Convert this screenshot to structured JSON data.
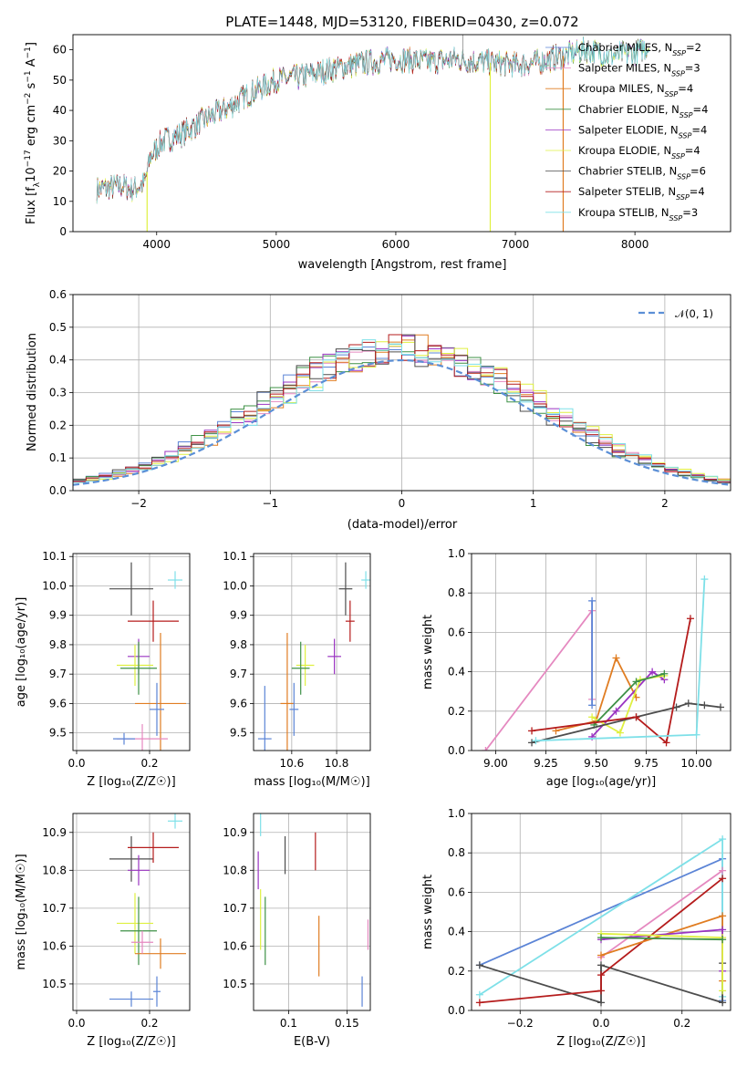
{
  "colors": {
    "chabrier_miles": "#5b84d6",
    "salpeter_miles": "#e589c0",
    "kroupa_miles": "#e07d22",
    "chabrier_elodie": "#3e9146",
    "salpeter_elodie": "#9a34c2",
    "kroupa_elodie": "#dff040",
    "chabrier_stelib": "#4d4d4d",
    "salpeter_stelib": "#b51c1c",
    "kroupa_stelib": "#7ee0e8",
    "grid": "#b0b0b0"
  },
  "chart_data": [
    {
      "id": "spectrum",
      "type": "line",
      "title": "PLATE=1448, MJD=53120, FIBERID=0430, z=0.072",
      "xlabel": "wavelength [Angstrom, rest frame]",
      "ylabel_main": "Flux [f",
      "ylabel_sub1": "λ",
      "ylabel_mid": "10",
      "ylabel_sup1": "−17",
      "ylabel_rest": " erg cm",
      "ylabel_sup2": "−2",
      "ylabel_s": " s",
      "ylabel_sup3": "−1",
      "ylabel_a": " A",
      "ylabel_sup4": "−1",
      "ylabel_end": "]",
      "xlim": [
        3300,
        8800
      ],
      "ylim": [
        0,
        65
      ],
      "xticks": [
        4000,
        5000,
        6000,
        7000,
        8000
      ],
      "yticks": [
        0,
        10,
        20,
        30,
        40,
        50,
        60
      ],
      "grid": false,
      "legend_position": "right",
      "legend": [
        {
          "label": "Chabrier MILES, N",
          "sub": "SSP",
          "val": "=2",
          "color_key": "chabrier_miles"
        },
        {
          "label": "Salpeter MILES, N",
          "sub": "SSP",
          "val": "=3",
          "color_key": "salpeter_miles"
        },
        {
          "label": "Kroupa MILES, N",
          "sub": "SSP",
          "val": "=4",
          "color_key": "kroupa_miles"
        },
        {
          "label": "Chabrier ELODIE, N",
          "sub": "SSP",
          "val": "=4",
          "color_key": "chabrier_elodie"
        },
        {
          "label": "Salpeter ELODIE, N",
          "sub": "SSP",
          "val": "=4",
          "color_key": "salpeter_elodie"
        },
        {
          "label": "Kroupa ELODIE, N",
          "sub": "SSP",
          "val": "=4",
          "color_key": "kroupa_elodie"
        },
        {
          "label": "Chabrier STELIB, N",
          "sub": "SSP",
          "val": "=6",
          "color_key": "chabrier_stelib"
        },
        {
          "label": "Salpeter STELIB, N",
          "sub": "SSP",
          "val": "=4",
          "color_key": "salpeter_stelib"
        },
        {
          "label": "Kroupa STELIB, N",
          "sub": "SSP",
          "val": "=3",
          "color_key": "kroupa_stelib"
        }
      ],
      "continuum": [
        [
          3500,
          14
        ],
        [
          3700,
          15
        ],
        [
          3800,
          14
        ],
        [
          3900,
          16
        ],
        [
          3950,
          25
        ],
        [
          4050,
          30
        ],
        [
          4200,
          32
        ],
        [
          4400,
          37
        ],
        [
          4600,
          41
        ],
        [
          4800,
          46
        ],
        [
          5000,
          50
        ],
        [
          5200,
          51
        ],
        [
          5500,
          54
        ],
        [
          5800,
          56
        ],
        [
          6000,
          57
        ],
        [
          6300,
          56
        ],
        [
          6500,
          57
        ],
        [
          6700,
          56
        ],
        [
          7000,
          55
        ],
        [
          7200,
          56
        ],
        [
          7400,
          58
        ],
        [
          7600,
          60
        ],
        [
          7800,
          58
        ],
        [
          8000,
          59
        ],
        [
          8100,
          61
        ]
      ],
      "dropouts": [
        {
          "x": 3920,
          "color_key": "kroupa_elodie",
          "wmax": 4000
        },
        {
          "x": 6790,
          "color_key": "kroupa_elodie",
          "wmax": 9000
        },
        {
          "x": 7400,
          "color_key": "kroupa_miles",
          "wmax": 7400
        }
      ]
    },
    {
      "id": "residuals",
      "type": "step-histogram",
      "xlabel": "(data-model)/error",
      "ylabel": "Normed distribution",
      "xlim": [
        -2.5,
        2.5
      ],
      "ylim": [
        0,
        0.6
      ],
      "xticks": [
        -2,
        -1,
        0,
        1,
        2
      ],
      "yticks": [
        0.0,
        0.1,
        0.2,
        0.3,
        0.4,
        0.5,
        0.6
      ],
      "grid": true,
      "legend": "𝒩(0, 1)",
      "legend_position": "top-right",
      "bin_start": -2.5,
      "bin_width": 0.1,
      "gaussian": {
        "mean": 0,
        "sigma": 1,
        "color": "#5b8fd6"
      }
    },
    {
      "id": "age_vs_Z",
      "type": "errorbar",
      "xlabel": "Z [log₁₀(Z/Z☉)]",
      "ylabel": "age  [log₁₀(age/yr)]",
      "xlim": [
        -0.01,
        0.31
      ],
      "ylim": [
        9.44,
        10.11
      ],
      "xticks": [
        0.0,
        0.2
      ],
      "yticks": [
        9.5,
        9.6,
        9.7,
        9.8,
        9.9,
        10.0,
        10.1
      ],
      "grid": true,
      "points": [
        {
          "x": 0.15,
          "xe": 0.06,
          "y": 9.99,
          "ye": 0.09,
          "color_key": "chabrier_stelib"
        },
        {
          "x": 0.27,
          "xe": 0.02,
          "y": 10.02,
          "ye": 0.03,
          "color_key": "kroupa_stelib"
        },
        {
          "x": 0.21,
          "xe": 0.07,
          "y": 9.88,
          "ye": 0.07,
          "color_key": "salpeter_stelib"
        },
        {
          "x": 0.17,
          "xe": 0.03,
          "y": 9.76,
          "ye": 0.06,
          "color_key": "salpeter_elodie"
        },
        {
          "x": 0.16,
          "xe": 0.05,
          "y": 9.73,
          "ye": 0.07,
          "color_key": "kroupa_elodie"
        },
        {
          "x": 0.17,
          "xe": 0.05,
          "y": 9.72,
          "ye": 0.09,
          "color_key": "chabrier_elodie"
        },
        {
          "x": 0.23,
          "xe": 0.07,
          "y": 9.6,
          "ye": 0.24,
          "color_key": "kroupa_miles"
        },
        {
          "x": 0.22,
          "xe": 0.02,
          "y": 9.58,
          "ye": 0.09,
          "color_key": "chabrier_miles"
        },
        {
          "x": 0.18,
          "xe": 0.07,
          "y": 9.48,
          "ye": 0.05,
          "color_key": "salpeter_miles"
        },
        {
          "x": 0.13,
          "xe": 0.03,
          "y": 9.48,
          "ye": 0.02,
          "color_key": "chabrier_miles"
        }
      ]
    },
    {
      "id": "age_vs_mass",
      "type": "errorbar",
      "xlabel": "mass [log₁₀(M/M☉)]",
      "xlim": [
        10.43,
        10.95
      ],
      "ylim": [
        9.44,
        10.11
      ],
      "xticks": [
        10.6,
        10.8
      ],
      "yticks": [
        9.5,
        9.6,
        9.7,
        9.8,
        9.9,
        10.0,
        10.1
      ],
      "grid": true,
      "points": [
        {
          "x": 10.84,
          "xe": 0.03,
          "y": 9.99,
          "ye": 0.09,
          "color_key": "chabrier_stelib"
        },
        {
          "x": 10.93,
          "xe": 0.02,
          "y": 10.02,
          "ye": 0.03,
          "color_key": "kroupa_stelib"
        },
        {
          "x": 10.86,
          "xe": 0.02,
          "y": 9.88,
          "ye": 0.07,
          "color_key": "salpeter_stelib"
        },
        {
          "x": 10.79,
          "xe": 0.03,
          "y": 9.76,
          "ye": 0.06,
          "color_key": "salpeter_elodie"
        },
        {
          "x": 10.66,
          "xe": 0.04,
          "y": 9.73,
          "ye": 0.07,
          "color_key": "kroupa_elodie"
        },
        {
          "x": 10.64,
          "xe": 0.04,
          "y": 9.72,
          "ye": 0.09,
          "color_key": "chabrier_elodie"
        },
        {
          "x": 10.58,
          "xe": 0.03,
          "y": 9.6,
          "ye": 0.24,
          "color_key": "kroupa_miles"
        },
        {
          "x": 10.61,
          "xe": 0.02,
          "y": 9.58,
          "ye": 0.09,
          "color_key": "chabrier_miles"
        },
        {
          "x": 10.48,
          "xe": 0.03,
          "y": 9.48,
          "ye": 0.18,
          "color_key": "chabrier_miles"
        }
      ]
    },
    {
      "id": "weight_vs_age",
      "type": "line",
      "xlabel": "age  [log₁₀(age/yr)]",
      "ylabel": "mass weight",
      "xlim": [
        8.88,
        10.17
      ],
      "ylim": [
        0,
        1
      ],
      "xticks": [
        9.0,
        9.25,
        9.5,
        9.75,
        10.0
      ],
      "yticks": [
        0.0,
        0.2,
        0.4,
        0.6,
        0.8,
        1.0
      ],
      "grid": true,
      "series": [
        {
          "color_key": "salpeter_miles",
          "points": [
            [
              8.95,
              0.0
            ],
            [
              9.48,
              0.71
            ],
            [
              9.48,
              0.26
            ]
          ]
        },
        {
          "color_key": "chabrier_miles",
          "points": [
            [
              9.48,
              0.76
            ],
            [
              9.48,
              0.23
            ]
          ]
        },
        {
          "color_key": "kroupa_miles",
          "points": [
            [
              9.3,
              0.1
            ],
            [
              9.5,
              0.15
            ],
            [
              9.6,
              0.47
            ],
            [
              9.7,
              0.27
            ]
          ]
        },
        {
          "color_key": "salpeter_elodie",
          "points": [
            [
              9.48,
              0.07
            ],
            [
              9.6,
              0.2
            ],
            [
              9.78,
              0.4
            ],
            [
              9.84,
              0.36
            ]
          ]
        },
        {
          "color_key": "kroupa_elodie",
          "points": [
            [
              9.48,
              0.17
            ],
            [
              9.62,
              0.09
            ],
            [
              9.72,
              0.36
            ],
            [
              9.84,
              0.38
            ]
          ]
        },
        {
          "color_key": "chabrier_elodie",
          "points": [
            [
              9.49,
              0.13
            ],
            [
              9.7,
              0.35
            ],
            [
              9.84,
              0.39
            ]
          ]
        },
        {
          "color_key": "chabrier_stelib",
          "points": [
            [
              9.18,
              0.04
            ],
            [
              9.7,
              0.17
            ],
            [
              9.9,
              0.22
            ],
            [
              9.96,
              0.24
            ],
            [
              10.04,
              0.23
            ],
            [
              10.12,
              0.22
            ]
          ]
        },
        {
          "color_key": "salpeter_stelib",
          "points": [
            [
              9.18,
              0.1
            ],
            [
              9.7,
              0.17
            ],
            [
              9.85,
              0.04
            ],
            [
              9.97,
              0.67
            ]
          ]
        },
        {
          "color_key": "kroupa_stelib",
          "points": [
            [
              9.2,
              0.05
            ],
            [
              10.0,
              0.08
            ],
            [
              10.04,
              0.87
            ]
          ]
        }
      ]
    },
    {
      "id": "mass_vs_Z",
      "type": "errorbar",
      "xlabel": "Z [log₁₀(Z/Z☉)]",
      "ylabel": "mass [log₁₀(M/M☉)]",
      "xlim": [
        -0.01,
        0.31
      ],
      "ylim": [
        10.43,
        10.95
      ],
      "xticks": [
        0.0,
        0.2
      ],
      "yticks": [
        10.5,
        10.6,
        10.7,
        10.8,
        10.9
      ],
      "grid": true,
      "points": [
        {
          "x": 0.27,
          "xe": 0.02,
          "y": 10.93,
          "ye": 0.02,
          "color_key": "kroupa_stelib"
        },
        {
          "x": 0.15,
          "xe": 0.06,
          "y": 10.83,
          "ye": 0.06,
          "color_key": "chabrier_stelib"
        },
        {
          "x": 0.21,
          "xe": 0.07,
          "y": 10.86,
          "ye": 0.04,
          "color_key": "salpeter_stelib"
        },
        {
          "x": 0.17,
          "xe": 0.03,
          "y": 10.8,
          "ye": 0.04,
          "color_key": "salpeter_elodie"
        },
        {
          "x": 0.16,
          "xe": 0.05,
          "y": 10.66,
          "ye": 0.08,
          "color_key": "kroupa_elodie"
        },
        {
          "x": 0.17,
          "xe": 0.05,
          "y": 10.64,
          "ye": 0.09,
          "color_key": "chabrier_elodie"
        },
        {
          "x": 0.23,
          "xe": 0.07,
          "y": 10.58,
          "ye": 0.04,
          "color_key": "kroupa_miles"
        },
        {
          "x": 0.18,
          "xe": 0.03,
          "y": 10.61,
          "ye": 0.03,
          "color_key": "salpeter_miles"
        },
        {
          "x": 0.15,
          "xe": 0.06,
          "y": 10.46,
          "ye": 0.02,
          "color_key": "chabrier_miles"
        },
        {
          "x": 0.22,
          "xe": 0.01,
          "y": 10.48,
          "ye": 0.04,
          "color_key": "chabrier_miles"
        }
      ]
    },
    {
      "id": "mass_vs_ebv",
      "type": "errorbar",
      "xlabel": "E(B-V)",
      "xlim": [
        0.07,
        0.17
      ],
      "ylim": [
        10.43,
        10.95
      ],
      "xticks": [
        0.1,
        0.15
      ],
      "yticks": [
        10.5,
        10.6,
        10.7,
        10.8,
        10.9
      ],
      "grid": true,
      "points": [
        {
          "x": 0.076,
          "xe": 0,
          "y": 10.92,
          "ye": 0.03,
          "color_key": "kroupa_stelib"
        },
        {
          "x": 0.097,
          "xe": 0,
          "y": 10.84,
          "ye": 0.05,
          "color_key": "chabrier_stelib"
        },
        {
          "x": 0.123,
          "xe": 0,
          "y": 10.85,
          "ye": 0.05,
          "color_key": "salpeter_stelib"
        },
        {
          "x": 0.074,
          "xe": 0,
          "y": 10.8,
          "ye": 0.05,
          "color_key": "salpeter_elodie"
        },
        {
          "x": 0.076,
          "xe": 0,
          "y": 10.67,
          "ye": 0.08,
          "color_key": "kroupa_elodie"
        },
        {
          "x": 0.08,
          "xe": 0,
          "y": 10.64,
          "ye": 0.09,
          "color_key": "chabrier_elodie"
        },
        {
          "x": 0.126,
          "xe": 0,
          "y": 10.6,
          "ye": 0.08,
          "color_key": "kroupa_miles"
        },
        {
          "x": 0.168,
          "xe": 0,
          "y": 10.63,
          "ye": 0.04,
          "color_key": "salpeter_miles"
        },
        {
          "x": 0.163,
          "xe": 0,
          "y": 10.48,
          "ye": 0.04,
          "color_key": "chabrier_miles"
        }
      ]
    },
    {
      "id": "weight_vs_Z",
      "type": "line",
      "xlabel": "Z [log₁₀(Z/Z☉)]",
      "ylabel": "mass weight",
      "xlim": [
        -0.32,
        0.32
      ],
      "ylim": [
        0,
        1
      ],
      "xticks": [
        -0.2,
        0.0,
        0.2
      ],
      "yticks": [
        0.0,
        0.2,
        0.4,
        0.6,
        0.8,
        1.0
      ],
      "grid": true,
      "series": [
        {
          "color_key": "chabrier_miles",
          "points": [
            [
              -0.3,
              0.23
            ],
            [
              0.3,
              0.77
            ],
            [
              0.3,
              0.05
            ]
          ]
        },
        {
          "color_key": "kroupa_stelib",
          "points": [
            [
              -0.3,
              0.08
            ],
            [
              0.3,
              0.87
            ],
            [
              0.3,
              0.07
            ]
          ]
        },
        {
          "color_key": "chabrier_stelib",
          "points": [
            [
              -0.3,
              0.23
            ],
            [
              0.0,
              0.04
            ],
            [
              0.0,
              0.23
            ],
            [
              0.3,
              0.04
            ],
            [
              0.3,
              0.24
            ]
          ]
        },
        {
          "color_key": "salpeter_stelib",
          "points": [
            [
              -0.3,
              0.04
            ],
            [
              0.0,
              0.1
            ],
            [
              0.0,
              0.18
            ],
            [
              0.3,
              0.67
            ]
          ]
        },
        {
          "color_key": "salpeter_miles",
          "points": [
            [
              0.0,
              0.27
            ],
            [
              0.3,
              0.71
            ]
          ]
        },
        {
          "color_key": "kroupa_miles",
          "points": [
            [
              0.0,
              0.28
            ],
            [
              0.3,
              0.48
            ],
            [
              0.3,
              0.15
            ]
          ]
        },
        {
          "color_key": "salpeter_elodie",
          "points": [
            [
              0.0,
              0.36
            ],
            [
              0.3,
              0.41
            ],
            [
              0.3,
              0.2
            ]
          ]
        },
        {
          "color_key": "kroupa_elodie",
          "points": [
            [
              0.0,
              0.39
            ],
            [
              0.3,
              0.37
            ],
            [
              0.3,
              0.1
            ]
          ]
        },
        {
          "color_key": "chabrier_elodie",
          "points": [
            [
              0.0,
              0.37
            ],
            [
              0.3,
              0.36
            ]
          ]
        }
      ]
    }
  ]
}
